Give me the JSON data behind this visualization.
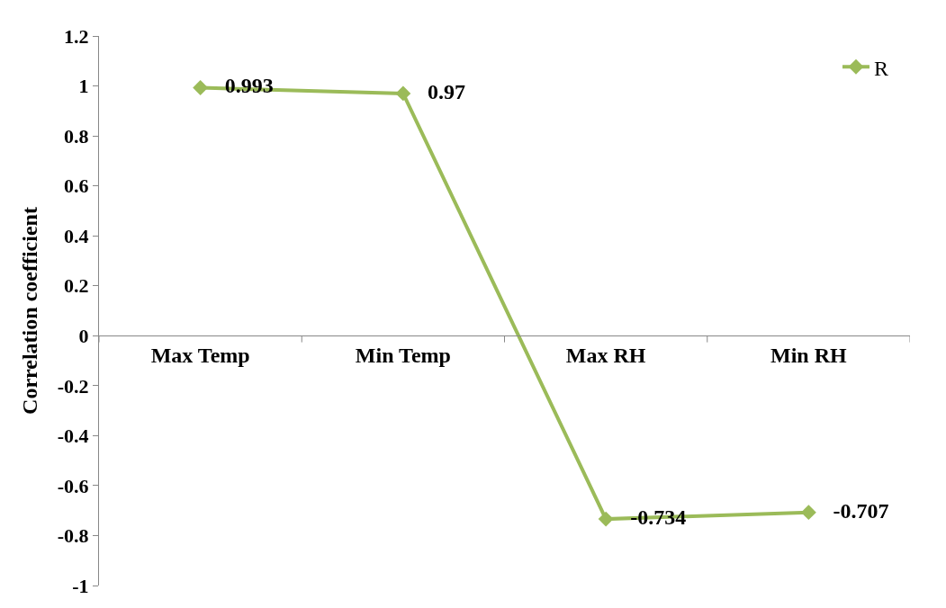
{
  "chart_data": {
    "type": "line",
    "ylabel": "Correlation coefficient",
    "categories": [
      "Max Temp",
      "Min Temp",
      "Max RH",
      "Min RH"
    ],
    "series": [
      {
        "name": "R",
        "color": "#9bbb59",
        "values": [
          0.993,
          0.97,
          -0.734,
          -0.707
        ]
      }
    ],
    "ylim": [
      -1,
      1.2
    ],
    "yticks": [
      -1,
      -0.8,
      -0.6,
      -0.4,
      -0.2,
      0,
      0.2,
      0.4,
      0.6,
      0.8,
      1,
      1.2
    ],
    "data_labels": true,
    "marker": "diamond",
    "line_style": "solid",
    "legend": "top right"
  }
}
